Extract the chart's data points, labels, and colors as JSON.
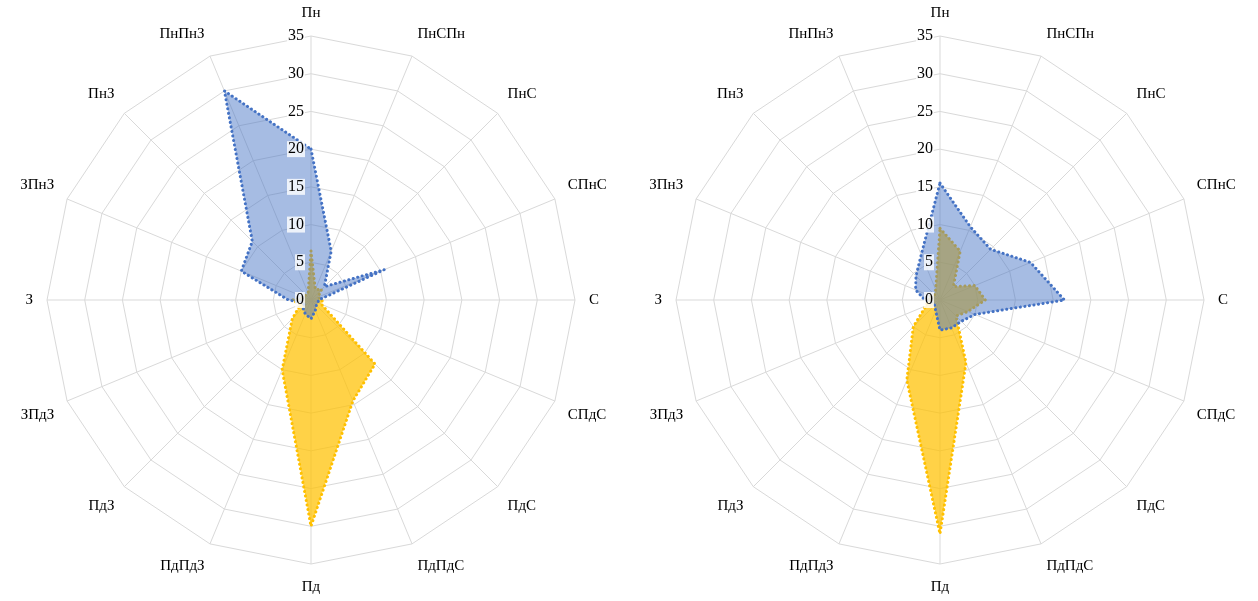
{
  "chart_data": [
    {
      "type": "radar",
      "categories": [
        "Пн",
        "ПнСПн",
        "ПнС",
        "СПнС",
        "С",
        "СПдС",
        "ПдС",
        "ПдПдС",
        "Пд",
        "ПдПдЗ",
        "ПдЗ",
        "ЗПдЗ",
        "З",
        "ЗПнЗ",
        "ПнЗ",
        "ПнПнЗ"
      ],
      "series": [
        {
          "color": "#4472c4",
          "values": [
            20,
            7,
            2.5,
            10.5,
            1,
            1,
            1,
            1.5,
            2.5,
            2,
            1.5,
            1,
            3,
            10,
            11,
            30
          ]
        },
        {
          "color": "#ffc000",
          "values": [
            6.5,
            1.5,
            2,
            1,
            1.5,
            1.5,
            12,
            14.5,
            30,
            10,
            3.5,
            1.5,
            2.5,
            1,
            1,
            1
          ]
        }
      ],
      "ylim": [
        0,
        35
      ],
      "yticks": [
        0,
        5,
        10,
        15,
        20,
        25,
        30,
        35
      ],
      "grid": true,
      "legend": false,
      "marker": "none",
      "line_style": "dotted"
    },
    {
      "type": "radar",
      "categories": [
        "Пн",
        "ПнСПн",
        "ПнС",
        "СПнС",
        "С",
        "СПдС",
        "ПдС",
        "ПдПдС",
        "Пд",
        "ПдПдЗ",
        "ПдЗ",
        "ЗПдЗ",
        "З",
        "ЗПнЗ",
        "ПнЗ",
        "ПнПнЗ"
      ],
      "series": [
        {
          "color": "#4472c4",
          "values": [
            15.5,
            10.5,
            9.5,
            13,
            16.5,
            5,
            4,
            4,
            4,
            1.5,
            1,
            1,
            2,
            3.5,
            4.5,
            6.5
          ]
        },
        {
          "color": "#ffc000",
          "values": [
            9.5,
            7,
            2.5,
            5,
            6,
            4,
            3,
            9,
            31,
            11.5,
            5,
            2,
            1.5,
            1.5,
            1,
            1.5
          ]
        }
      ],
      "ylim": [
        0,
        35
      ],
      "yticks": [
        0,
        5,
        10,
        15,
        20,
        25,
        30,
        35
      ],
      "grid": true,
      "legend": false,
      "marker": "none",
      "line_style": "dotted"
    }
  ]
}
